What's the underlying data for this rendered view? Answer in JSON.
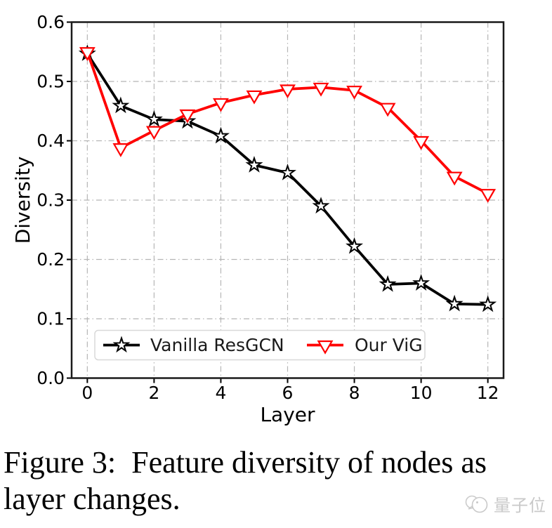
{
  "chart_data": {
    "type": "line",
    "title": "",
    "xlabel": "Layer",
    "ylabel": "Diversity",
    "xlim": [
      -0.47,
      12.47
    ],
    "ylim": [
      0.0,
      0.6
    ],
    "xticks": [
      0,
      2,
      4,
      6,
      8,
      10,
      12
    ],
    "yticks": [
      0.0,
      0.1,
      0.2,
      0.3,
      0.4,
      0.5,
      0.6
    ],
    "grid": {
      "show": true,
      "style": "dash-dot",
      "color": "#b5b5b5"
    },
    "legend": {
      "position": "lower-left-inside",
      "border_color": "#d8d8d8"
    },
    "x": [
      0,
      1,
      2,
      3,
      4,
      5,
      6,
      7,
      8,
      9,
      10,
      11,
      12
    ],
    "series": [
      {
        "name": "Vanilla ResGCN",
        "color": "#000000",
        "marker": "star",
        "values": [
          0.547,
          0.459,
          0.436,
          0.433,
          0.408,
          0.359,
          0.346,
          0.29,
          0.222,
          0.158,
          0.16,
          0.125,
          0.124
        ]
      },
      {
        "name": "Our ViG",
        "color": "#ff0000",
        "marker": "triangle-down",
        "values": [
          0.55,
          0.388,
          0.417,
          0.445,
          0.464,
          0.477,
          0.487,
          0.49,
          0.485,
          0.456,
          0.4,
          0.34,
          0.311
        ]
      }
    ]
  },
  "caption": {
    "line1": "Figure 3:  Feature diversity of nodes as",
    "line2": "layer changes."
  },
  "watermark": {
    "text": "量子位",
    "color": "#c9c9c9"
  }
}
